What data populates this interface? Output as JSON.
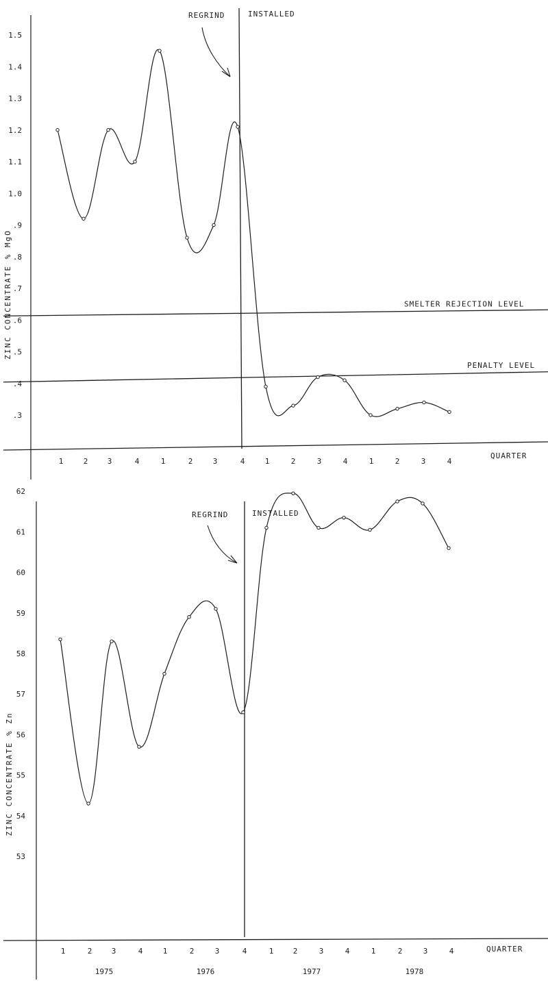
{
  "chart_data": [
    {
      "type": "line",
      "ylabel": "ZINC CONCENTRATE  % MgO",
      "xlabel": "QUARTER",
      "yticks": [
        ".3",
        ".4",
        ".5",
        ".6",
        ".7",
        ".8",
        ".9",
        "1.0",
        "1.1",
        "1.2",
        "1.3",
        "1.4",
        "1.5"
      ],
      "ylim": [
        0.2,
        1.55
      ],
      "categories": [
        "1",
        "2",
        "3",
        "4",
        "1",
        "2",
        "3",
        "4",
        "1",
        "2",
        "3",
        "4",
        "1",
        "2",
        "3",
        "4"
      ],
      "values": [
        1.2,
        0.92,
        1.2,
        1.1,
        1.45,
        0.86,
        0.9,
        1.21,
        0.39,
        0.33,
        0.42,
        0.41,
        0.3,
        0.32,
        0.34,
        0.31
      ],
      "marker_labels": {
        "regrind": "REGRIND",
        "installed": "INSTALLED"
      },
      "reference_lines": [
        {
          "label": "SMELTER REJECTION LEVEL",
          "value": 0.6
        },
        {
          "label": "PENALTY LEVEL",
          "value": 0.4
        }
      ]
    },
    {
      "type": "line",
      "ylabel": "ZINC CONCENTRATE  % Zn",
      "xlabel": "QUARTER",
      "yticks": [
        "53",
        "54",
        "55",
        "56",
        "57",
        "58",
        "59",
        "60",
        "61",
        "62"
      ],
      "ylim": [
        52.2,
        62.4
      ],
      "categories": [
        "1",
        "2",
        "3",
        "4",
        "1",
        "2",
        "3",
        "4",
        "1",
        "2",
        "3",
        "4",
        "1",
        "2",
        "3",
        "4"
      ],
      "values": [
        58.35,
        54.3,
        58.3,
        55.7,
        57.5,
        58.9,
        59.1,
        56.55,
        61.1,
        61.95,
        61.1,
        61.35,
        61.05,
        61.75,
        61.7,
        60.6
      ],
      "years": [
        "1975",
        "1976",
        "1977",
        "1978"
      ],
      "marker_labels": {
        "regrind": "REGRIND",
        "installed": "INSTALLED"
      }
    }
  ]
}
